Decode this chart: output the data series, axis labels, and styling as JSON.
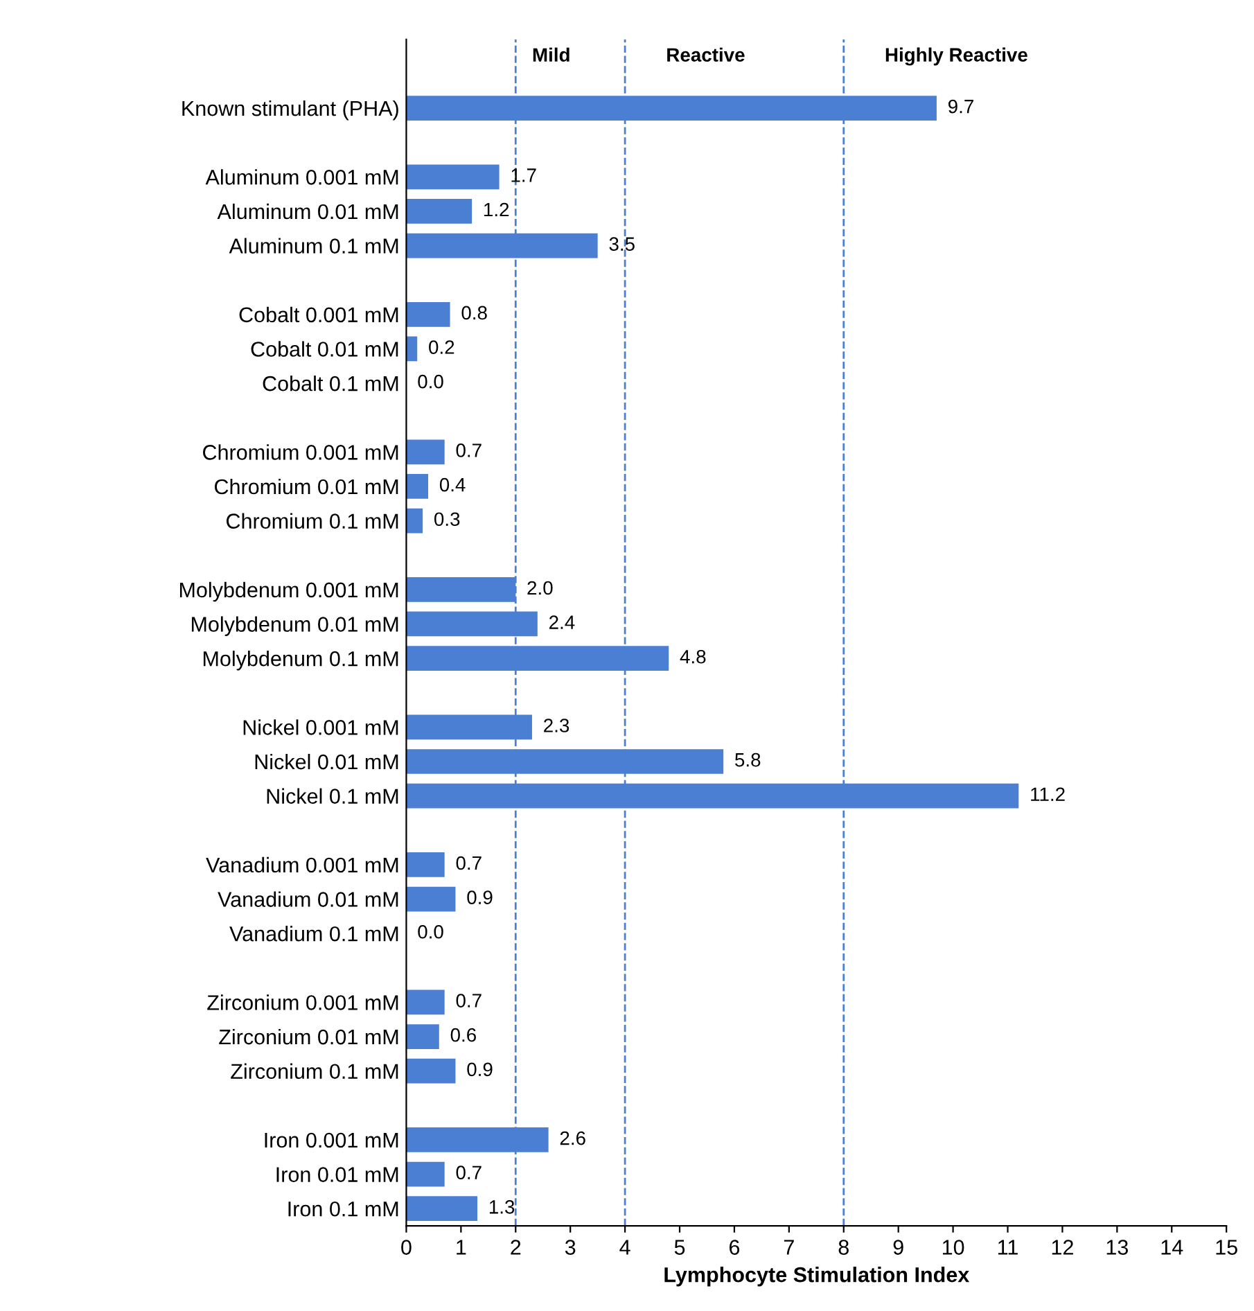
{
  "chart_data": {
    "type": "bar",
    "orientation": "horizontal",
    "xlabel": "Lymphocyte Stimulation Index",
    "categories": [
      "Known stimulant (PHA)",
      null,
      "Aluminum 0.001 mM",
      "Aluminum 0.01 mM",
      "Aluminum 0.1 mM",
      null,
      "Cobalt 0.001 mM",
      "Cobalt 0.01 mM",
      "Cobalt 0.1 mM",
      null,
      "Chromium 0.001 mM",
      "Chromium 0.01 mM",
      "Chromium 0.1 mM",
      null,
      "Molybdenum 0.001 mM",
      "Molybdenum 0.01 mM",
      "Molybdenum 0.1 mM",
      null,
      "Nickel 0.001 mM",
      "Nickel 0.01 mM",
      "Nickel 0.1 mM",
      null,
      "Vanadium 0.001 mM",
      "Vanadium 0.01 mM",
      "Vanadium 0.1 mM",
      null,
      "Zirconium 0.001 mM",
      "Zirconium 0.01 mM",
      "Zirconium 0.1 mM",
      null,
      "Iron 0.001 mM",
      "Iron 0.01 mM",
      "Iron 0.1 mM"
    ],
    "values": [
      9.7,
      null,
      1.7,
      1.2,
      3.5,
      null,
      0.8,
      0.2,
      0.0,
      null,
      0.7,
      0.4,
      0.3,
      null,
      2.0,
      2.4,
      4.8,
      null,
      2.3,
      5.8,
      11.2,
      null,
      0.7,
      0.9,
      0.0,
      null,
      0.7,
      0.6,
      0.9,
      null,
      2.6,
      0.7,
      1.3
    ],
    "color": "#4a7fd4",
    "value_labels": [
      "9.7",
      null,
      "1.7",
      "1.2",
      "3.5",
      null,
      "0.8",
      "0.2",
      "0.0",
      null,
      "0.7",
      "0.4",
      "0.3",
      null,
      "2.0",
      "2.4",
      "4.8",
      null,
      "2.3",
      "5.8",
      "11.2",
      null,
      "0.7",
      "0.9",
      "0.0",
      null,
      "0.7",
      "0.6",
      "0.9",
      null,
      "2.6",
      "0.7",
      "1.3"
    ],
    "xlim": [
      0,
      15
    ],
    "xticks": [
      0,
      1,
      2,
      3,
      4,
      5,
      6,
      7,
      8,
      9,
      10,
      11,
      12,
      13,
      14,
      15
    ],
    "ref_lines": [
      {
        "axis": "x",
        "value": 2,
        "label": "Mild",
        "color": "#4a7fd4",
        "line_style": "dashed"
      },
      {
        "axis": "x",
        "value": 4,
        "label": "Reactive",
        "color": "#4a7fd4",
        "line_style": "dashed"
      },
      {
        "axis": "x",
        "value": 8,
        "label": "Highly Reactive",
        "color": "#4a7fd4",
        "line_style": "dashed"
      }
    ],
    "grid": false,
    "legend": false
  }
}
